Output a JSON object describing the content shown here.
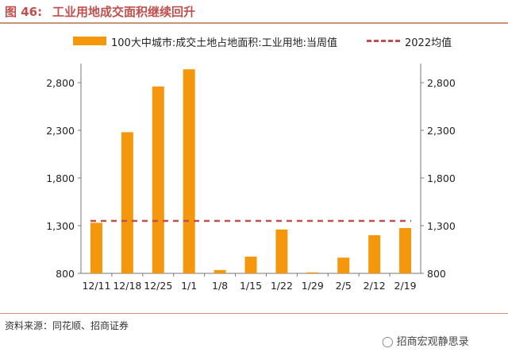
{
  "figure": {
    "number": "图 46:",
    "title": "工业用地成交面积继续回升"
  },
  "legend": {
    "bar_label": "100大中城市:成交土地占地面积:工业用地:当周值",
    "line_label": "2022均值"
  },
  "source": "资料来源：同花顺、招商证券",
  "watermark": "招商宏观静思录",
  "colors": {
    "bar": "#f5970d",
    "avg_line": "#c0504d",
    "header": "#c0504d"
  },
  "chart_data": {
    "type": "bar",
    "categories": [
      "12/11",
      "12/18",
      "12/25",
      "1/1",
      "1/8",
      "1/15",
      "1/22",
      "1/29",
      "2/5",
      "2/12",
      "2/19"
    ],
    "series": [
      {
        "name": "100大中城市:成交土地占地面积:工业用地:当周值",
        "values": [
          1330,
          2280,
          2760,
          2940,
          835,
          975,
          1260,
          810,
          965,
          1200,
          1275
        ]
      },
      {
        "name": "2022均值",
        "type": "line",
        "style": "dashed",
        "values": [
          1350,
          1350,
          1350,
          1350,
          1350,
          1350,
          1350,
          1350,
          1350,
          1350,
          1350
        ]
      }
    ],
    "ylim": [
      800,
      3000
    ],
    "yticks": [
      "800",
      "1,300",
      "1,800",
      "2,300",
      "2,800"
    ],
    "ytick_values": [
      800,
      1300,
      1800,
      2300,
      2800
    ],
    "dual_axis": true,
    "grid": false,
    "legend_position": "top"
  }
}
